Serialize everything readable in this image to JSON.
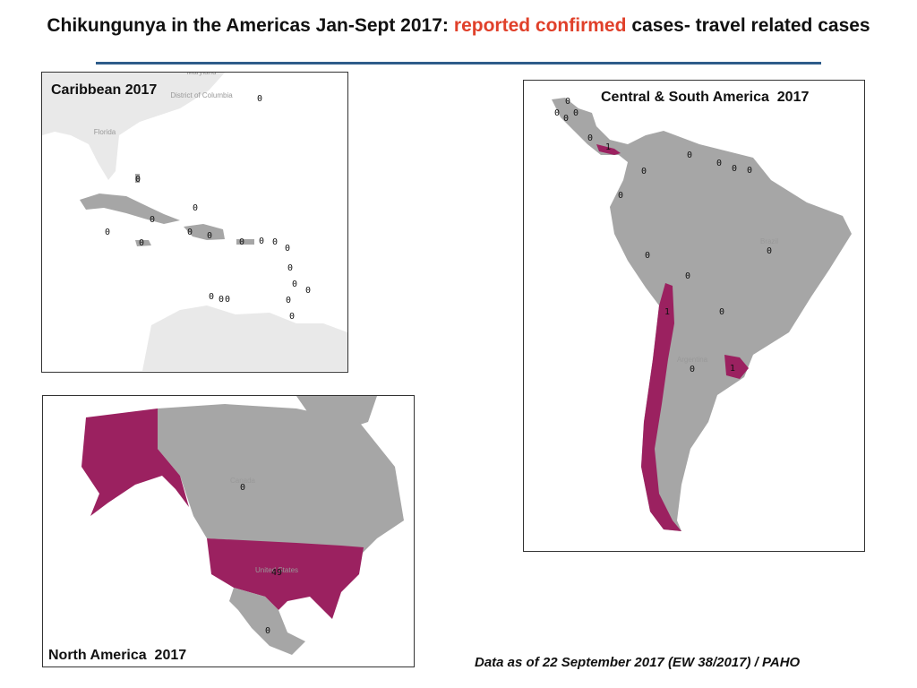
{
  "title": {
    "start": "Chikungunya in the Americas Jan-Sept 2017:",
    "highlight": "reported confirmed",
    "end": "cases- travel related cases"
  },
  "panels": [
    {
      "title": "Caribbean 2017",
      "place_labels": [
        "Maryland",
        "District of Columbia",
        "Florida"
      ],
      "counts": [
        0,
        0,
        0,
        0,
        0,
        0,
        0,
        0,
        0,
        0,
        0,
        0,
        0,
        0,
        0,
        0,
        0,
        0,
        0,
        0
      ]
    },
    {
      "title": "Central & South America  2017",
      "place_labels": [
        "Brazil",
        "Argentina"
      ],
      "counts": [
        0,
        0,
        0,
        0,
        0,
        1,
        0,
        0,
        0,
        0,
        0,
        0,
        0,
        0,
        0,
        1,
        0,
        0,
        1
      ]
    },
    {
      "title": "North America  2017",
      "place_labels": [
        "Canada",
        "United States"
      ],
      "counts": [
        0,
        49,
        0
      ]
    }
  ],
  "footnote": "Data as of 22 September 2017 (EW 38/2017) / PAHO"
}
